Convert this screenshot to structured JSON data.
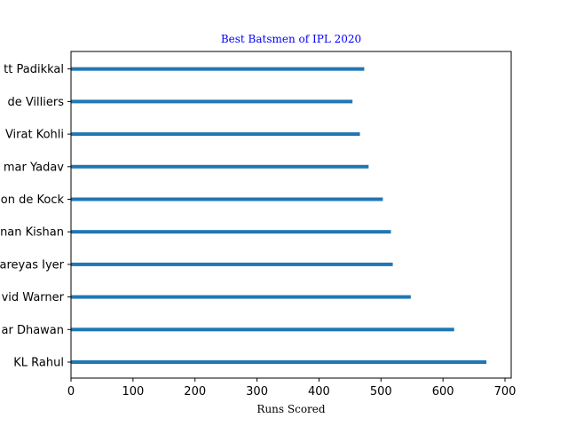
{
  "chart_data": {
    "type": "bar",
    "orientation": "horizontal",
    "title": "Best Batsmen of IPL 2020",
    "title_color": "#0000ff",
    "xlabel": "Runs Scored",
    "ylabel": "",
    "xlim": [
      0,
      710
    ],
    "xticks": [
      0,
      100,
      200,
      300,
      400,
      500,
      600,
      700
    ],
    "bar_color": "#1f77b4",
    "grid": false,
    "categories": [
      "KL Rahul",
      "Shikhar Dhawan",
      "David Warner",
      "Shreyas Iyer",
      "Ishan Kishan",
      "Quinton de Kock",
      "Suryakumar Yadav",
      "Virat Kohli",
      "AB de Villiers",
      "Devdutt Padikkal"
    ],
    "category_labels_visible": [
      "KL Rahul",
      "ar Dhawan",
      "vid Warner",
      "areyas Iyer",
      "nan Kishan",
      "on de Kock",
      "mar Yadav",
      "Virat Kohli",
      "de Villiers",
      "tt Padikkal"
    ],
    "values": [
      670,
      618,
      548,
      519,
      516,
      503,
      480,
      466,
      454,
      473
    ]
  }
}
